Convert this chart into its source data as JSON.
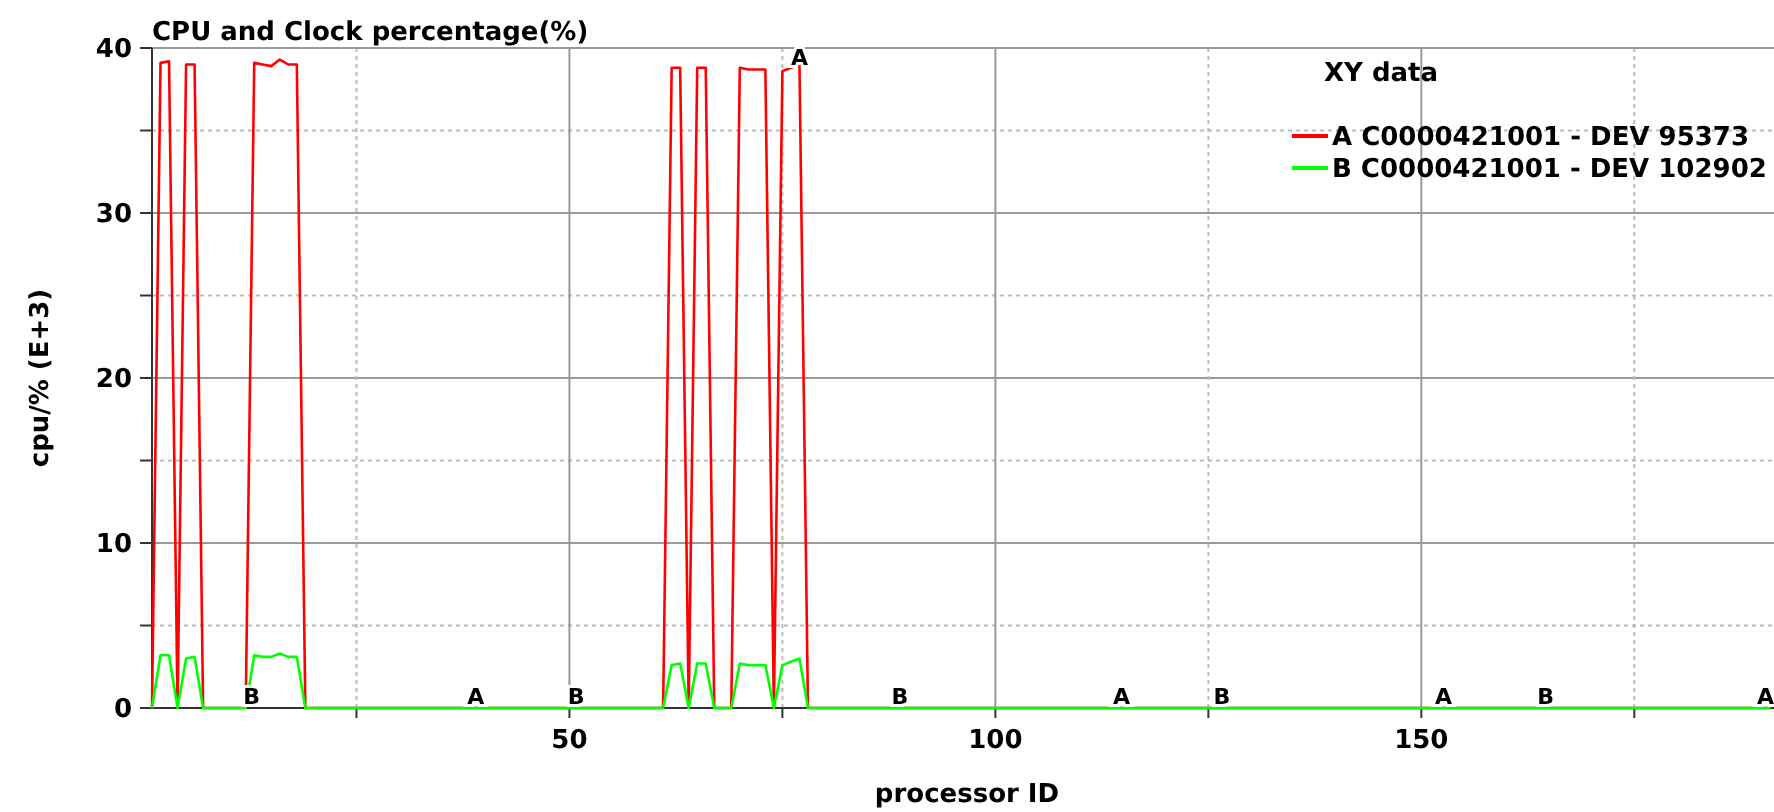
{
  "chart_data": {
    "type": "line",
    "title": "CPU and Clock percentage(%)",
    "xlabel": "processor ID",
    "ylabel": "cpu/% (E+3)",
    "legend_title": "XY data",
    "legend": "top right",
    "grid": true,
    "marker": "none",
    "line_style": "solid",
    "xlim": [
      1,
      191.4
    ],
    "xticks": [
      {
        "value": 25,
        "label": null
      },
      50,
      {
        "value": 75,
        "label": null
      },
      100,
      {
        "value": 125,
        "label": null
      },
      150,
      {
        "value": 175,
        "label": null
      }
    ],
    "ylim": [
      0,
      40
    ],
    "yticks": [
      0,
      {
        "value": 5,
        "label": null
      },
      10,
      {
        "value": 15,
        "label": null
      },
      20,
      {
        "value": 25,
        "label": null
      },
      30,
      {
        "value": 35,
        "label": null
      },
      40
    ],
    "x": [
      1,
      2,
      3,
      4,
      5,
      6,
      7,
      8,
      9,
      10,
      11,
      12,
      13,
      14,
      15,
      16,
      17,
      18,
      19,
      61,
      62,
      63,
      64,
      65,
      66,
      67,
      68,
      69,
      70,
      71,
      72,
      73,
      74,
      75,
      76,
      77,
      78,
      191
    ],
    "series": [
      {
        "name": "A C0000421001 - DEV 95373",
        "color": "#ff0000",
        "values": [
          0,
          39.1,
          39.2,
          0,
          39.0,
          39.0,
          0,
          0,
          0,
          0,
          0,
          0,
          39.1,
          39.0,
          38.9,
          39.3,
          39.0,
          39.0,
          0,
          0,
          38.8,
          38.8,
          0,
          38.8,
          38.8,
          0,
          0,
          0,
          38.8,
          38.7,
          38.7,
          38.7,
          0,
          38.6,
          38.8,
          39.1,
          0,
          0
        ]
      },
      {
        "name": "B C0000421001 - DEV 102902",
        "color": "#00ff00",
        "values": [
          0,
          3.2,
          3.2,
          0,
          3.0,
          3.1,
          0,
          0,
          0,
          0,
          0,
          0,
          3.2,
          3.1,
          3.1,
          3.3,
          3.1,
          3.1,
          0,
          0,
          2.6,
          2.7,
          0,
          2.7,
          2.7,
          0,
          0,
          0,
          2.7,
          2.6,
          2.6,
          2.6,
          0,
          2.6,
          2.8,
          3.0,
          0,
          0
        ]
      }
    ],
    "annotations": [
      {
        "text": "A",
        "x": 39,
        "y": 0
      },
      {
        "text": "A",
        "x": 77,
        "y": 39.1
      },
      {
        "text": "A",
        "x": 114.8,
        "y": 0
      },
      {
        "text": "A",
        "x": 152.6,
        "y": 0
      },
      {
        "text": "A",
        "x": 190.4,
        "y": 0
      },
      {
        "text": "B",
        "x": 12.7,
        "y": 0
      },
      {
        "text": "B",
        "x": 50.8,
        "y": 0
      },
      {
        "text": "B",
        "x": 88.8,
        "y": 0
      },
      {
        "text": "B",
        "x": 126.6,
        "y": 0
      },
      {
        "text": "B",
        "x": 164.6,
        "y": 0
      }
    ]
  }
}
